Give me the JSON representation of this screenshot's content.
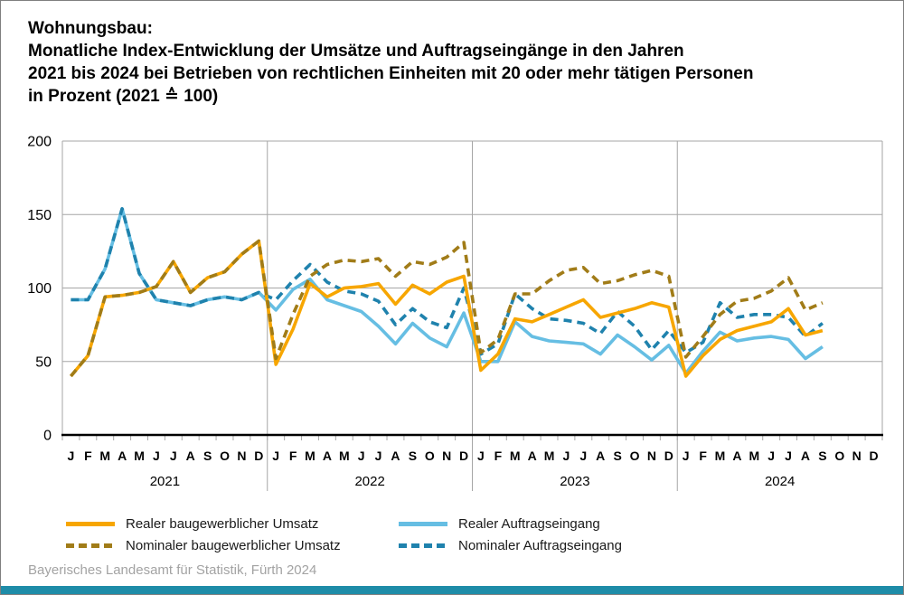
{
  "title": {
    "line1": "Wohnungsbau:",
    "line2": "Monatliche Index-Entwicklung der Umsätze und Auftragseingänge in den Jahren",
    "line3": "2021 bis 2024 bei Betrieben von rechtlichen Einheiten mit 20 oder mehr tätigen Personen",
    "line4": "in Prozent (2021 ≙ 100)"
  },
  "footer": {
    "source": "Bayerisches Landesamt für Statistik, Fürth 2024"
  },
  "colors": {
    "background": "#FFFFFF",
    "border": "#7F7F7F",
    "grid": "#A6A6A6",
    "axis": "#000000",
    "text": "#000000",
    "footer_text": "#A3A3A3",
    "bottom_bar": "#1E8CA8"
  },
  "chart_data": {
    "type": "line",
    "title": "Wohnungsbau: Monatliche Index-Entwicklung der Umsätze und Auftragseingänge 2021 bis 2024, in Prozent (2021 ≙ 100)",
    "xlabel": "",
    "ylabel": "",
    "ylim": [
      0,
      200
    ],
    "yticks": [
      0,
      50,
      100,
      150,
      200
    ],
    "grid": true,
    "legend_position": "bottom",
    "years": [
      "2021",
      "2022",
      "2023",
      "2024"
    ],
    "month_letters": [
      "J",
      "F",
      "M",
      "A",
      "M",
      "J",
      "J",
      "A",
      "S",
      "O",
      "N",
      "D"
    ],
    "months_plotted": 45,
    "series": [
      {
        "name": "Realer baugewerblicher Umsatz",
        "color": "#F7A600",
        "style": "solid",
        "values": [
          40,
          54,
          94,
          95,
          97,
          101,
          118,
          97,
          107,
          111,
          123,
          132,
          48,
          72,
          103,
          94,
          100,
          101,
          103,
          89,
          102,
          96,
          104,
          108,
          44,
          55,
          79,
          77,
          82,
          87,
          92,
          80,
          83,
          86,
          90,
          87,
          40,
          54,
          65,
          71,
          74,
          77,
          86,
          68,
          71
        ]
      },
      {
        "name": "Nominaler baugewerblicher Umsatz",
        "color": "#A17C18",
        "style": "dashed",
        "values": [
          40,
          54,
          94,
          95,
          97,
          101,
          118,
          97,
          107,
          111,
          123,
          132,
          52,
          82,
          108,
          116,
          119,
          118,
          120,
          108,
          118,
          116,
          121,
          131,
          56,
          65,
          96,
          96,
          105,
          112,
          114,
          103,
          105,
          109,
          112,
          108,
          53,
          67,
          82,
          91,
          93,
          98,
          107,
          85,
          90
        ]
      },
      {
        "name": "Realer Auftragseingang",
        "color": "#66BEE3",
        "style": "solid",
        "values": [
          92,
          92,
          113,
          154,
          110,
          92,
          90,
          88,
          92,
          94,
          92,
          97,
          85,
          99,
          106,
          92,
          88,
          84,
          74,
          62,
          76,
          66,
          60,
          83,
          50,
          50,
          77,
          67,
          64,
          63,
          62,
          55,
          68,
          60,
          51,
          61,
          42,
          57,
          70,
          64,
          66,
          67,
          65,
          52,
          60
        ]
      },
      {
        "name": "Nominaler Auftragseingang",
        "color": "#1F82AD",
        "style": "dashed",
        "values": [
          92,
          92,
          113,
          154,
          110,
          92,
          90,
          88,
          92,
          94,
          92,
          97,
          92,
          105,
          116,
          104,
          98,
          96,
          91,
          75,
          86,
          77,
          73,
          100,
          55,
          62,
          96,
          86,
          79,
          78,
          76,
          69,
          84,
          74,
          58,
          71,
          56,
          63,
          90,
          80,
          82,
          82,
          80,
          67,
          76
        ]
      }
    ]
  }
}
